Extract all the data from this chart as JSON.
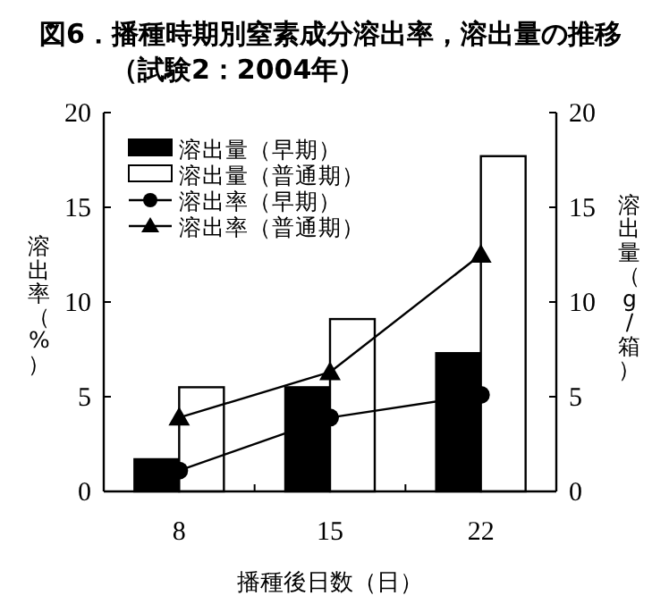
{
  "chart_data": {
    "type": "bar",
    "title": "図6．播種時期別窒素成分溶出率，溶出量の推移（試験2：2004年）",
    "xlabel": "播種後日数（日）",
    "ylabel": "溶出率（%）",
    "y2label": "溶出量（g/箱）",
    "categories": [
      "8",
      "15",
      "22"
    ],
    "series": [
      {
        "name": "溶出量（早期）",
        "color": "#000000",
        "values": [
          1.7,
          5.5,
          7.3
        ]
      },
      {
        "name": "溶出量（普通期）",
        "color": "#ffffff",
        "values": [
          5.5,
          9.1,
          17.7
        ]
      },
      {
        "name": "溶出率（早期）",
        "type": "line",
        "marker": "circle",
        "color": "#000000",
        "values": [
          1.1,
          3.9,
          5.1
        ]
      },
      {
        "name": "溶出率（普通期）",
        "type": "line",
        "marker": "triangle",
        "color": "#000000",
        "values": [
          3.9,
          6.3,
          12.5
        ]
      }
    ],
    "ylim": [
      0,
      20
    ],
    "yticks": [
      0,
      5,
      10,
      15,
      20
    ],
    "y2lim": [
      0,
      20
    ],
    "y2ticks": [
      0,
      5,
      10,
      15,
      20
    ],
    "legend": "top left",
    "grid": false
  }
}
